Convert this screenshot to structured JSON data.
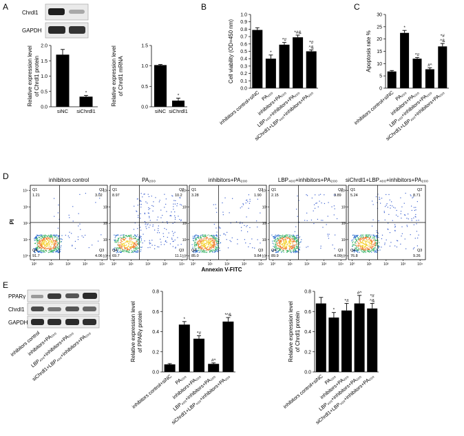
{
  "panel_letters": {
    "A": "A",
    "B": "B",
    "C": "C",
    "D": "D",
    "E": "E"
  },
  "blot_A": {
    "lanes": [
      "siNC",
      "siChrdl1"
    ],
    "bands": [
      "Chrdl1",
      "GAPDH"
    ]
  },
  "blot_E": {
    "lanes": [
      "inhibitors control",
      "inhibitors+PA₂₀₀",
      "LBP₄₀₀+inhibitors+PA₂₀₀",
      "siChrdl1+LBP₄₀₀+inhibitors+PA₂₀₀"
    ],
    "bands": [
      "PPARγ",
      "Chrdl1",
      "GAPDH"
    ]
  },
  "flow": {
    "xlabel": "Annexin V-FITC",
    "ylabel": "PI",
    "plots": [
      {
        "title": "inhibitors control",
        "q1": "1.21",
        "q2": "3.02",
        "q3": "4.06",
        "q4": "91.7"
      },
      {
        "title": "PA₂₀₀",
        "q1": "8.97",
        "q2": "10.2",
        "q3": "11.1",
        "q4": "69.7"
      },
      {
        "title": "inhibitors+PA₂₀₀",
        "q1": "3.28",
        "q2": "1.90",
        "q3": "9.84",
        "q4": "85.0"
      },
      {
        "title": "LBP₄₀₀+inhibitors+PA₂₀₀",
        "q1": "2.15",
        "q2": "3.89",
        "q3": "4.09",
        "q4": "89.9"
      },
      {
        "title": "siChrdl1+LBP₄₀₀+inhibitors+PA₂₀₀",
        "q1": "5.24",
        "q2": "8.71",
        "q3": "9.26",
        "q4": "76.8"
      }
    ],
    "quadrant_names": [
      "Q1",
      "Q2",
      "Q3",
      "Q4"
    ],
    "axis_ticks": [
      "10⁰",
      "10¹",
      "10²",
      "10³",
      "10⁴"
    ]
  },
  "chart_data": [
    {
      "id": "A1",
      "type": "bar",
      "categories": [
        "siNC",
        "siChrdl1"
      ],
      "values": [
        1.7,
        0.33
      ],
      "errors": [
        0.17,
        0.04
      ],
      "marks": [
        "",
        "*"
      ],
      "ylabel": [
        "Relative expression level",
        "of Chrdl1 protein"
      ],
      "ylim": [
        0,
        2.0
      ],
      "yticks": [
        "0.0",
        "0.5",
        "1.0",
        "1.5",
        "2.0"
      ]
    },
    {
      "id": "A2",
      "type": "bar",
      "categories": [
        "siNC",
        "siChrdl1"
      ],
      "values": [
        1.02,
        0.15
      ],
      "errors": [
        0.015,
        0.06
      ],
      "marks": [
        "",
        "*"
      ],
      "ylabel": [
        "Relative expression level",
        "of Chrdl1 mRNA"
      ],
      "ylim": [
        0,
        1.5
      ],
      "yticks": [
        "0.0",
        "0.5",
        "1.0",
        "1.5"
      ]
    },
    {
      "id": "B",
      "type": "bar",
      "categories": [
        "inhibitors control+siNC",
        "PA₂₀₀",
        "inhibitors+PA₂₀₀",
        "LBP₄₀₀+inhibitors+PA₂₀₀",
        "siChrdl1+LBP₄₀₀+inhibitors+PA₂₀₀"
      ],
      "values": [
        0.79,
        0.4,
        0.59,
        0.69,
        0.5
      ],
      "errors": [
        0.03,
        0.05,
        0.03,
        0.03,
        0.02
      ],
      "marks": [
        "",
        "*",
        "*#",
        "*#&",
        [
          "*#",
          "^&"
        ]
      ],
      "ylabel": [
        "Cell viability (OD=450 nm)"
      ],
      "ylim": [
        0,
        1.0
      ],
      "yticks": [
        "0.0",
        "0.1",
        "0.2",
        "0.3",
        "0.4",
        "0.5",
        "0.6",
        "0.7",
        "0.8",
        "0.9",
        "1.0"
      ]
    },
    {
      "id": "C",
      "type": "bar",
      "categories": [
        "inhibitors control+siNC",
        "PA₂₀₀",
        "inhibitors+PA₂₀₀",
        "LBP₄₀₀+inhibitors+PA₂₀₀",
        "siChrdl1+LBP₄₀₀+inhibitors+PA₂₀₀"
      ],
      "values": [
        6.8,
        22.5,
        12.0,
        7.7,
        17.0
      ],
      "errors": [
        0.4,
        1.0,
        0.5,
        0.6,
        1.2
      ],
      "marks": [
        "",
        "*",
        "*#",
        "#^",
        [
          "*#",
          "^&"
        ]
      ],
      "ylabel": [
        "Apoptosis rate %"
      ],
      "ylim": [
        0,
        30
      ],
      "yticks": [
        "0",
        "5",
        "10",
        "15",
        "20",
        "25",
        "30"
      ]
    },
    {
      "id": "E1",
      "type": "bar",
      "categories": [
        "inhibitors control+siNC",
        "PA₂₀₀",
        "inhibitors+PA₂₀₀",
        "LBP₄₀₀+inhibitors+PA₂₀₀",
        "siChrdl1+LBP₄₀₀+inhibitors+PA₂₀₀"
      ],
      "values": [
        0.075,
        0.47,
        0.33,
        0.08,
        0.5
      ],
      "errors": [
        0.008,
        0.03,
        0.03,
        0.01,
        0.04
      ],
      "marks": [
        "",
        "*",
        "*#",
        "#^",
        "*^&"
      ],
      "ylabel": [
        "Relative expression level",
        "of PPARγ protein"
      ],
      "ylim": [
        0,
        0.8
      ],
      "yticks": [
        "0.0",
        "0.2",
        "0.4",
        "0.6",
        "0.8"
      ]
    },
    {
      "id": "E2",
      "type": "bar",
      "categories": [
        "inhibitors control+siNC",
        "PA₂₀₀",
        "inhibitors+PA₂₀₀",
        "LBP₄₀₀+inhibitors+PA₂₀₀",
        "siChrdl1+LBP₄₀₀+inhibitors+PA₂₀₀"
      ],
      "values": [
        0.68,
        0.54,
        0.61,
        0.68,
        0.63
      ],
      "errors": [
        0.06,
        0.05,
        0.07,
        0.08,
        0.05
      ],
      "marks": [
        "",
        "*",
        "*#",
        "#^",
        [
          "*#",
          "^&"
        ]
      ],
      "ylabel": [
        "Relative expression level",
        "of Chrdl1 protein"
      ],
      "ylim": [
        0,
        0.8
      ],
      "yticks": [
        "0.0",
        "0.2",
        "0.4",
        "0.6",
        "0.8"
      ]
    }
  ]
}
